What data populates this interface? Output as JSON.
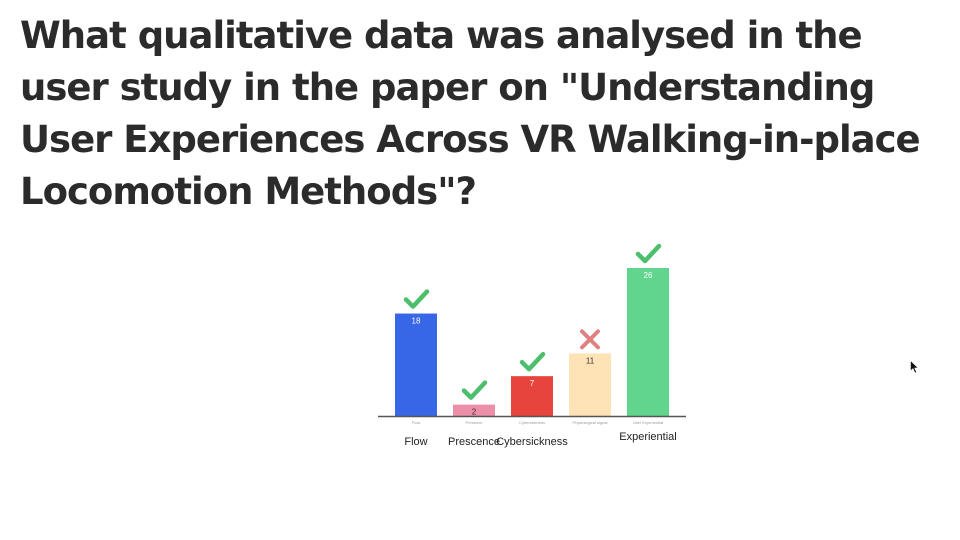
{
  "slide": {
    "title": "What qualitative data was analysed in the user study in the paper on \"Understanding User Experiences Across VR Walking-in-place Locomotion Methods\"?"
  },
  "chart_data": {
    "type": "bar",
    "categories": [
      "Flow",
      "Presence",
      "Cybersickness",
      "Physiological signal",
      "User Experiential"
    ],
    "values": [
      18,
      2,
      7,
      11,
      26
    ],
    "value_labels": [
      "18",
      "2",
      "7",
      "11",
      "26"
    ],
    "colors": [
      "#3767e6",
      "#ec8fa8",
      "#e8443e",
      "#fde3b6",
      "#61d58e"
    ],
    "marks": [
      "check",
      "check",
      "check",
      "cross",
      "check"
    ],
    "mark_icons": [
      "check-icon",
      "check-icon",
      "check-icon",
      "cross-icon",
      "check-icon"
    ],
    "mark_colors": {
      "check": "#4cbe6c",
      "cross": "#e08080"
    },
    "captions": [
      "Flow",
      "Prescence",
      "Cybersickness",
      "",
      "Experiential"
    ],
    "title": "",
    "xlabel": "",
    "ylabel": "",
    "ylim": [
      0,
      26
    ],
    "grid": false,
    "legend": "none"
  }
}
